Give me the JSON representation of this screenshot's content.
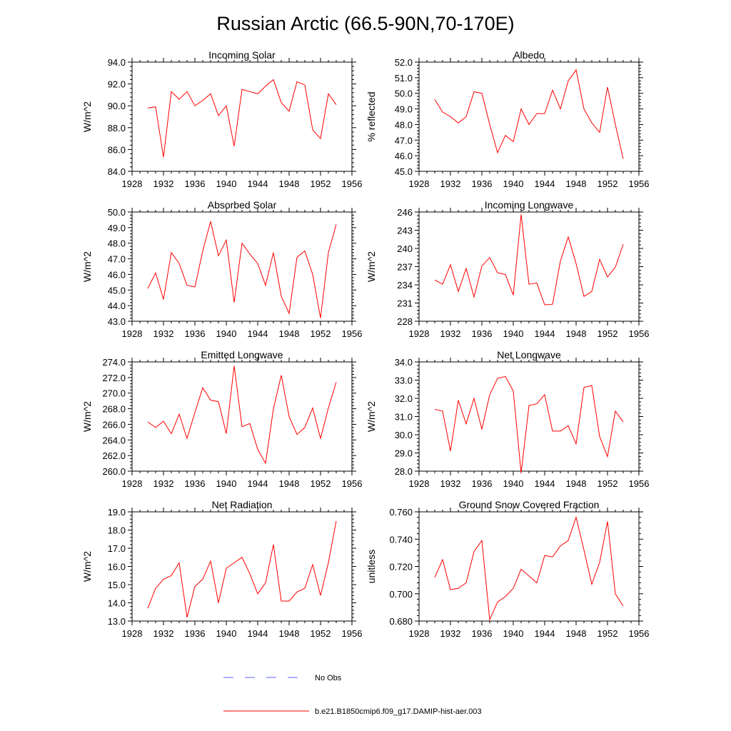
{
  "figure_title": "Russian Arctic (66.5-90N,70-170E)",
  "legend": {
    "obs_label": "No Obs",
    "obs_color": "#6060ff",
    "model_label": "b.e21.B1850cmip6.f09_g17.DAMIP-hist-aer.003",
    "model_color": "#ff0000"
  },
  "chart_data": [
    {
      "type": "line",
      "title": "Incoming Solar",
      "ylabel": "W/m^2",
      "xlim": [
        1928,
        1956
      ],
      "ylim": [
        84,
        94
      ],
      "x_ticks": [
        "1928",
        "1932",
        "1936",
        "1940",
        "1944",
        "1948",
        "1952",
        "1956"
      ],
      "y_ticks": [
        "84.0",
        "86.0",
        "88.0",
        "90.0",
        "92.0",
        "94.0"
      ],
      "x": [
        1930,
        1931,
        1932,
        1933,
        1934,
        1935,
        1936,
        1937,
        1938,
        1939,
        1940,
        1941,
        1942,
        1943,
        1944,
        1945,
        1946,
        1947,
        1948,
        1949,
        1950,
        1951,
        1952,
        1953,
        1954
      ],
      "series": [
        {
          "values": [
            89.8,
            89.9,
            85.3,
            91.3,
            90.6,
            91.3,
            90.0,
            90.5,
            91.1,
            89.1,
            90.0,
            86.3,
            91.5,
            91.3,
            91.1,
            91.8,
            92.4,
            90.3,
            89.5,
            92.2,
            91.9,
            87.8,
            87.0,
            91.1,
            90.1
          ]
        }
      ]
    },
    {
      "type": "line",
      "title": "Albedo",
      "ylabel": "% reflected",
      "xlim": [
        1928,
        1956
      ],
      "ylim": [
        45,
        52
      ],
      "x_ticks": [
        "1928",
        "1932",
        "1936",
        "1940",
        "1944",
        "1948",
        "1952",
        "1956"
      ],
      "y_ticks": [
        "45.0",
        "46.0",
        "47.0",
        "48.0",
        "49.0",
        "50.0",
        "51.0",
        "52.0"
      ],
      "x": [
        1930,
        1931,
        1932,
        1933,
        1934,
        1935,
        1936,
        1937,
        1938,
        1939,
        1940,
        1941,
        1942,
        1943,
        1944,
        1945,
        1946,
        1947,
        1948,
        1949,
        1950,
        1951,
        1952,
        1953,
        1954
      ],
      "series": [
        {
          "values": [
            49.6,
            48.8,
            48.5,
            48.1,
            48.5,
            50.1,
            50.0,
            48.0,
            46.2,
            47.3,
            46.9,
            49.0,
            48.0,
            48.7,
            48.7,
            50.2,
            49.0,
            50.8,
            51.5,
            49.0,
            48.1,
            47.5,
            50.4,
            48.0,
            45.8
          ]
        }
      ]
    },
    {
      "type": "line",
      "title": "Absorbed Solar",
      "ylabel": "W/m^2",
      "xlim": [
        1928,
        1956
      ],
      "ylim": [
        43,
        50
      ],
      "x_ticks": [
        "1928",
        "1932",
        "1936",
        "1940",
        "1944",
        "1948",
        "1952",
        "1956"
      ],
      "y_ticks": [
        "43.0",
        "44.0",
        "45.0",
        "46.0",
        "47.0",
        "48.0",
        "49.0",
        "50.0"
      ],
      "x": [
        1930,
        1931,
        1932,
        1933,
        1934,
        1935,
        1936,
        1937,
        1938,
        1939,
        1940,
        1941,
        1942,
        1943,
        1944,
        1945,
        1946,
        1947,
        1948,
        1949,
        1950,
        1951,
        1952,
        1953,
        1954
      ],
      "series": [
        {
          "values": [
            45.1,
            46.1,
            44.4,
            47.4,
            46.7,
            45.3,
            45.2,
            47.5,
            49.4,
            47.2,
            48.2,
            44.2,
            48.0,
            47.3,
            46.7,
            45.3,
            47.4,
            44.6,
            43.5,
            47.1,
            47.5,
            46.0,
            43.2,
            47.4,
            49.2
          ]
        }
      ]
    },
    {
      "type": "line",
      "title": "Incoming Longwave",
      "ylabel": "W/m^2",
      "xlim": [
        1928,
        1956
      ],
      "ylim": [
        228,
        246
      ],
      "x_ticks": [
        "1928",
        "1932",
        "1936",
        "1940",
        "1944",
        "1948",
        "1952",
        "1956"
      ],
      "y_ticks": [
        "228",
        "231",
        "234",
        "237",
        "240",
        "243",
        "246"
      ],
      "x": [
        1930,
        1931,
        1932,
        1933,
        1934,
        1935,
        1936,
        1937,
        1938,
        1939,
        1940,
        1941,
        1942,
        1943,
        1944,
        1945,
        1946,
        1947,
        1948,
        1949,
        1950,
        1951,
        1952,
        1953,
        1954
      ],
      "series": [
        {
          "values": [
            234.8,
            234.1,
            237.3,
            232.9,
            236.7,
            232.0,
            237.1,
            238.5,
            236.0,
            235.7,
            232.3,
            245.6,
            234.1,
            234.3,
            230.7,
            230.8,
            237.9,
            241.9,
            237.5,
            232.1,
            232.9,
            238.2,
            235.3,
            236.9,
            240.7
          ]
        }
      ]
    },
    {
      "type": "line",
      "title": "Emitted Longwave",
      "ylabel": "W/m^2",
      "xlim": [
        1928,
        1956
      ],
      "ylim": [
        260,
        274
      ],
      "x_ticks": [
        "1928",
        "1932",
        "1936",
        "1940",
        "1944",
        "1948",
        "1952",
        "1956"
      ],
      "y_ticks": [
        "260.0",
        "262.0",
        "264.0",
        "266.0",
        "268.0",
        "270.0",
        "272.0",
        "274.0"
      ],
      "x": [
        1930,
        1931,
        1932,
        1933,
        1934,
        1935,
        1936,
        1937,
        1938,
        1939,
        1940,
        1941,
        1942,
        1943,
        1944,
        1945,
        1946,
        1947,
        1948,
        1949,
        1950,
        1951,
        1952,
        1953,
        1954
      ],
      "series": [
        {
          "values": [
            266.3,
            265.6,
            266.4,
            264.8,
            267.3,
            264.2,
            267.5,
            270.7,
            269.1,
            268.9,
            264.8,
            273.5,
            265.7,
            266.1,
            262.8,
            261.0,
            268.0,
            272.3,
            267.0,
            264.7,
            265.6,
            268.1,
            264.2,
            268.1,
            271.4
          ]
        }
      ]
    },
    {
      "type": "line",
      "title": "Net Longwave",
      "ylabel": "W/m^2",
      "xlim": [
        1928,
        1956
      ],
      "ylim": [
        28,
        34
      ],
      "x_ticks": [
        "1928",
        "1932",
        "1936",
        "1940",
        "1944",
        "1948",
        "1952",
        "1956"
      ],
      "y_ticks": [
        "28.0",
        "29.0",
        "30.0",
        "31.0",
        "32.0",
        "33.0",
        "34.0"
      ],
      "x": [
        1930,
        1931,
        1932,
        1933,
        1934,
        1935,
        1936,
        1937,
        1938,
        1939,
        1940,
        1941,
        1942,
        1943,
        1944,
        1945,
        1946,
        1947,
        1948,
        1949,
        1950,
        1951,
        1952,
        1953,
        1954
      ],
      "series": [
        {
          "values": [
            31.4,
            31.3,
            29.1,
            31.9,
            30.6,
            32.0,
            30.3,
            32.2,
            33.1,
            33.2,
            32.4,
            27.9,
            31.6,
            31.7,
            32.2,
            30.2,
            30.2,
            30.5,
            29.5,
            32.6,
            32.7,
            29.9,
            28.8,
            31.3,
            30.7
          ]
        }
      ]
    },
    {
      "type": "line",
      "title": "Net Radiation",
      "ylabel": "W/m^2",
      "xlim": [
        1928,
        1956
      ],
      "ylim": [
        13,
        19
      ],
      "x_ticks": [
        "1928",
        "1932",
        "1936",
        "1940",
        "1944",
        "1948",
        "1952",
        "1956"
      ],
      "y_ticks": [
        "13.0",
        "14.0",
        "15.0",
        "16.0",
        "17.0",
        "18.0",
        "19.0"
      ],
      "x": [
        1930,
        1931,
        1932,
        1933,
        1934,
        1935,
        1936,
        1937,
        1938,
        1939,
        1940,
        1941,
        1942,
        1943,
        1944,
        1945,
        1946,
        1947,
        1948,
        1949,
        1950,
        1951,
        1952,
        1953,
        1954
      ],
      "series": [
        {
          "values": [
            13.7,
            14.8,
            15.3,
            15.5,
            16.2,
            13.2,
            14.9,
            15.3,
            16.3,
            14.0,
            15.9,
            16.2,
            16.5,
            15.6,
            14.5,
            15.1,
            17.2,
            14.1,
            14.1,
            14.6,
            14.8,
            16.1,
            14.4,
            16.2,
            18.5
          ]
        }
      ]
    },
    {
      "type": "line",
      "title": "Ground Snow Covered Fraction",
      "ylabel": "unitless",
      "xlim": [
        1928,
        1956
      ],
      "ylim": [
        0.68,
        0.76
      ],
      "x_ticks": [
        "1928",
        "1932",
        "1936",
        "1940",
        "1944",
        "1948",
        "1952",
        "1956"
      ],
      "y_ticks": [
        "0.680",
        "0.700",
        "0.720",
        "0.740",
        "0.760"
      ],
      "x": [
        1930,
        1931,
        1932,
        1933,
        1934,
        1935,
        1936,
        1937,
        1938,
        1939,
        1940,
        1941,
        1942,
        1943,
        1944,
        1945,
        1946,
        1947,
        1948,
        1949,
        1950,
        1951,
        1952,
        1953,
        1954
      ],
      "series": [
        {
          "values": [
            0.712,
            0.725,
            0.703,
            0.704,
            0.708,
            0.731,
            0.739,
            0.681,
            0.694,
            0.698,
            0.704,
            0.718,
            0.713,
            0.708,
            0.728,
            0.727,
            0.735,
            0.739,
            0.756,
            0.732,
            0.707,
            0.723,
            0.753,
            0.7,
            0.691
          ]
        }
      ]
    }
  ]
}
